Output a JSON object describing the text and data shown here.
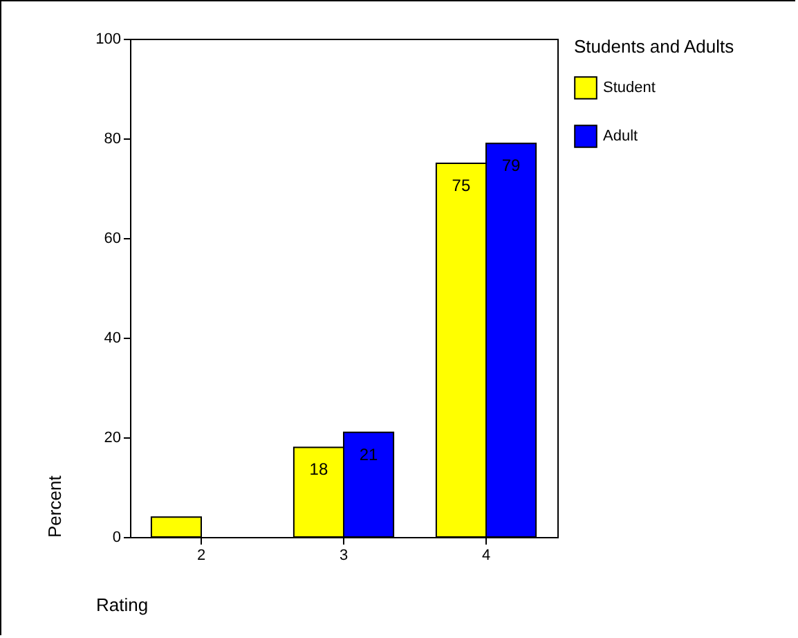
{
  "chart_data": {
    "type": "bar",
    "xlabel": "Rating",
    "ylabel": "Percent",
    "legend_title": "Students and Adults",
    "categories": [
      "2",
      "3",
      "4"
    ],
    "series": [
      {
        "name": "Student",
        "color": "#ffff00",
        "values": [
          4,
          18,
          75
        ],
        "value_labels": [
          null,
          "18",
          "75"
        ]
      },
      {
        "name": "Adult",
        "color": "#0000ff",
        "values": [
          null,
          21,
          79
        ],
        "value_labels": [
          null,
          "21",
          "79"
        ]
      }
    ],
    "ylim": [
      0,
      100
    ],
    "yticks": [
      0,
      20,
      40,
      60,
      80,
      100
    ],
    "legend": "right"
  }
}
